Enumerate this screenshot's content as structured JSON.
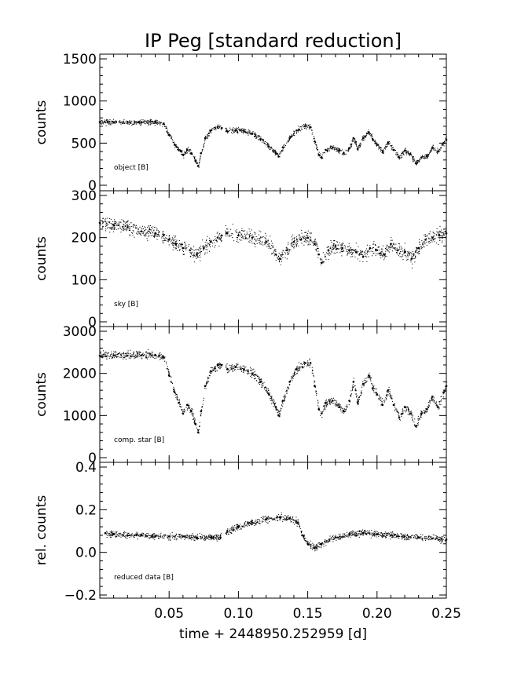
{
  "chart_data": [
    {
      "type": "scatter",
      "panel": "object",
      "title": "IP Peg [standard reduction]",
      "ylabel": "counts",
      "annotation": "object [B]",
      "xlim": [
        0.0,
        0.25
      ],
      "ylim": [
        0,
        1500
      ],
      "yticks": [
        0,
        500,
        1000,
        1500
      ],
      "ytick_labels": [
        "0",
        "500",
        "1000",
        "1500"
      ],
      "x": [
        0.0,
        0.01,
        0.02,
        0.03,
        0.04,
        0.046,
        0.05,
        0.054,
        0.057,
        0.06,
        0.063,
        0.066,
        0.069,
        0.071,
        0.073,
        0.076,
        0.08,
        0.085,
        0.088,
        0.092,
        0.098,
        0.104,
        0.11,
        0.116,
        0.122,
        0.127,
        0.129,
        0.132,
        0.137,
        0.142,
        0.148,
        0.152,
        0.155,
        0.158,
        0.16,
        0.163,
        0.168,
        0.173,
        0.176,
        0.18,
        0.183,
        0.186,
        0.19,
        0.194,
        0.197,
        0.2,
        0.204,
        0.208,
        0.212,
        0.216,
        0.22,
        0.224,
        0.228,
        0.232,
        0.236,
        0.24,
        0.244,
        0.248,
        0.25
      ],
      "y": [
        750,
        745,
        750,
        745,
        750,
        730,
        600,
        480,
        420,
        360,
        420,
        380,
        290,
        230,
        380,
        560,
        650,
        690,
        680,
        640,
        650,
        640,
        610,
        550,
        460,
        380,
        340,
        450,
        560,
        650,
        700,
        690,
        520,
        360,
        330,
        420,
        450,
        410,
        380,
        440,
        560,
        430,
        560,
        630,
        540,
        480,
        390,
        510,
        420,
        330,
        410,
        370,
        260,
        330,
        350,
        450,
        400,
        500,
        540
      ]
    },
    {
      "type": "scatter",
      "panel": "sky",
      "ylabel": "counts",
      "annotation": "sky [B]",
      "xlim": [
        0.0,
        0.25
      ],
      "ylim": [
        0,
        300
      ],
      "yticks": [
        0,
        100,
        200,
        300
      ],
      "ytick_labels": [
        "0",
        "100",
        "200",
        "300"
      ],
      "x": [
        0.0,
        0.01,
        0.02,
        0.03,
        0.04,
        0.046,
        0.05,
        0.055,
        0.06,
        0.065,
        0.07,
        0.075,
        0.08,
        0.085,
        0.088,
        0.092,
        0.1,
        0.11,
        0.12,
        0.127,
        0.13,
        0.135,
        0.14,
        0.145,
        0.15,
        0.155,
        0.158,
        0.16,
        0.165,
        0.17,
        0.175,
        0.18,
        0.185,
        0.19,
        0.195,
        0.2,
        0.205,
        0.21,
        0.215,
        0.22,
        0.225,
        0.23,
        0.235,
        0.24,
        0.245,
        0.25
      ],
      "y": [
        235,
        230,
        225,
        215,
        210,
        205,
        195,
        185,
        175,
        170,
        160,
        175,
        190,
        200,
        205,
        210,
        205,
        200,
        190,
        160,
        150,
        170,
        190,
        195,
        200,
        185,
        160,
        140,
        170,
        180,
        175,
        170,
        165,
        155,
        175,
        170,
        160,
        185,
        170,
        165,
        150,
        175,
        195,
        200,
        205,
        210
      ]
    },
    {
      "type": "scatter",
      "panel": "comp. star",
      "ylabel": "counts",
      "annotation": "comp. star [B]",
      "xlim": [
        0.0,
        0.25
      ],
      "ylim": [
        0,
        3000
      ],
      "yticks": [
        0,
        1000,
        2000,
        3000
      ],
      "ytick_labels": [
        "0",
        "1000",
        "2000",
        "3000"
      ],
      "x": [
        0.0,
        0.01,
        0.02,
        0.03,
        0.04,
        0.046,
        0.05,
        0.054,
        0.057,
        0.06,
        0.063,
        0.066,
        0.069,
        0.071,
        0.073,
        0.076,
        0.08,
        0.085,
        0.088,
        0.092,
        0.098,
        0.104,
        0.11,
        0.116,
        0.122,
        0.127,
        0.129,
        0.132,
        0.137,
        0.142,
        0.148,
        0.152,
        0.155,
        0.158,
        0.16,
        0.163,
        0.168,
        0.173,
        0.176,
        0.18,
        0.183,
        0.186,
        0.19,
        0.194,
        0.197,
        0.2,
        0.204,
        0.208,
        0.212,
        0.216,
        0.22,
        0.224,
        0.228,
        0.232,
        0.236,
        0.24,
        0.244,
        0.248,
        0.25
      ],
      "y": [
        2420,
        2430,
        2420,
        2430,
        2430,
        2380,
        1950,
        1550,
        1300,
        1050,
        1250,
        1100,
        800,
        600,
        1100,
        1700,
        2050,
        2200,
        2200,
        2100,
        2150,
        2100,
        2000,
        1800,
        1500,
        1200,
        1000,
        1350,
        1800,
        2100,
        2250,
        2250,
        1700,
        1150,
        1050,
        1300,
        1350,
        1200,
        1100,
        1350,
        1800,
        1300,
        1750,
        1950,
        1650,
        1500,
        1250,
        1600,
        1250,
        950,
        1200,
        1050,
        750,
        1050,
        1150,
        1450,
        1200,
        1550,
        1700
      ]
    },
    {
      "type": "scatter",
      "panel": "reduced data",
      "ylabel": "rel. counts",
      "xlabel": "time + 2448950.252959 [d]",
      "annotation": "reduced data [B]",
      "xlim": [
        0.0,
        0.25
      ],
      "ylim": [
        -0.2,
        0.4
      ],
      "yticks": [
        -0.2,
        0.0,
        0.2,
        0.4
      ],
      "ytick_labels": [
        "−0.2",
        "0.0",
        "0.2",
        "0.4"
      ],
      "xticks": [
        0.05,
        0.1,
        0.15,
        0.2,
        0.25
      ],
      "xtick_labels": [
        "0.05",
        "0.10",
        "0.15",
        "0.20",
        "0.25"
      ],
      "x": [
        0.004,
        0.01,
        0.02,
        0.03,
        0.04,
        0.05,
        0.06,
        0.07,
        0.08,
        0.087,
        0.092,
        0.1,
        0.11,
        0.12,
        0.13,
        0.137,
        0.143,
        0.146,
        0.15,
        0.155,
        0.16,
        0.17,
        0.18,
        0.19,
        0.2,
        0.21,
        0.22,
        0.23,
        0.24,
        0.25
      ],
      "y": [
        0.09,
        0.085,
        0.08,
        0.08,
        0.075,
        0.075,
        0.075,
        0.07,
        0.07,
        0.07,
        0.1,
        0.12,
        0.14,
        0.155,
        0.165,
        0.16,
        0.14,
        0.08,
        0.04,
        0.02,
        0.04,
        0.07,
        0.085,
        0.09,
        0.085,
        0.08,
        0.075,
        0.07,
        0.065,
        0.06
      ]
    }
  ]
}
